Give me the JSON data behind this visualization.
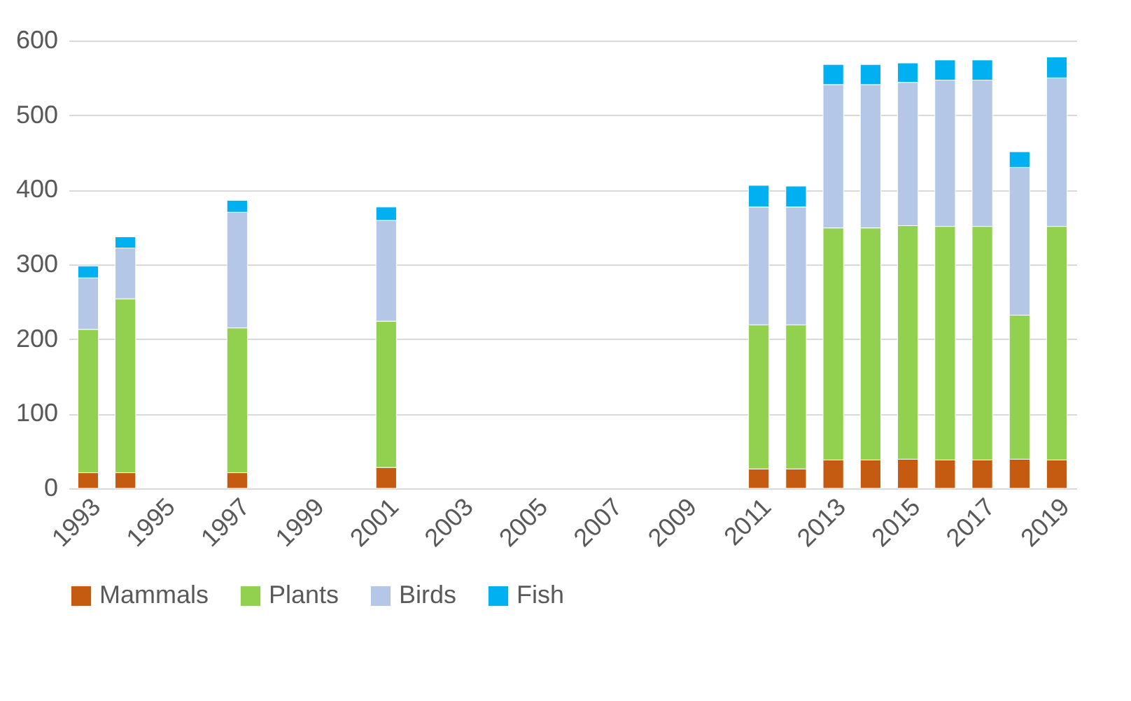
{
  "chart_data": {
    "type": "bar",
    "stacked": true,
    "categories": [
      "1993",
      null,
      "1995",
      null,
      "1997",
      null,
      "1999",
      null,
      "2001",
      null,
      "2003",
      null,
      "2005",
      null,
      "2007",
      null,
      "2009",
      null,
      "2011",
      null,
      "2013",
      null,
      "2015",
      null,
      "2017",
      null,
      "2019"
    ],
    "series": [
      {
        "name": "Mammals",
        "color": "#c55a11",
        "values": [
          21,
          21,
          null,
          null,
          21,
          null,
          null,
          null,
          28,
          null,
          null,
          null,
          null,
          null,
          null,
          null,
          null,
          null,
          26,
          26,
          38,
          38,
          39,
          38,
          38,
          39,
          38
        ]
      },
      {
        "name": "Plants",
        "color": "#92d050",
        "values": [
          192,
          233,
          null,
          null,
          194,
          null,
          null,
          null,
          196,
          null,
          null,
          null,
          null,
          null,
          null,
          null,
          null,
          null,
          193,
          193,
          311,
          311,
          313,
          313,
          313,
          193,
          313
        ]
      },
      {
        "name": "Birds",
        "color": "#b4c7e7",
        "values": [
          69,
          68,
          null,
          null,
          155,
          null,
          null,
          null,
          135,
          null,
          null,
          null,
          null,
          null,
          null,
          null,
          null,
          null,
          158,
          158,
          192,
          192,
          192,
          196,
          196,
          198,
          199
        ]
      },
      {
        "name": "Fish",
        "color": "#00b0f0",
        "values": [
          16,
          15,
          null,
          null,
          16,
          null,
          null,
          null,
          18,
          null,
          null,
          null,
          null,
          null,
          null,
          null,
          null,
          null,
          29,
          28,
          27,
          27,
          26,
          27,
          27,
          21,
          28
        ]
      }
    ],
    "ylim": [
      0,
      600
    ],
    "yticks": [
      0,
      100,
      200,
      300,
      400,
      500,
      600
    ],
    "grid": "y",
    "legend": "bottom"
  }
}
